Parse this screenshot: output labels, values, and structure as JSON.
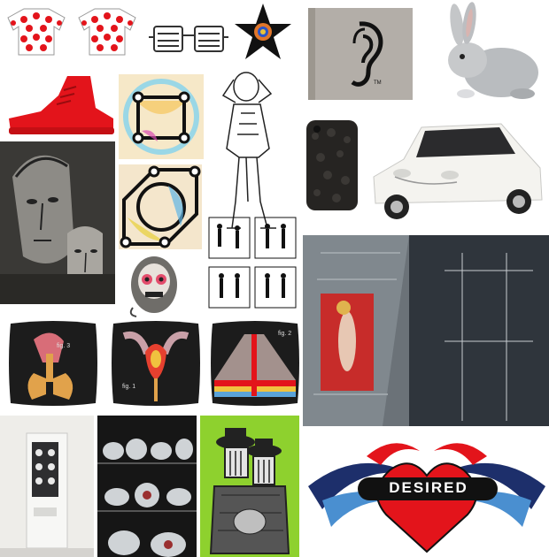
{
  "collage": {
    "background": "#ffffff",
    "tiles": [
      {
        "name": "polka-dot-jerseys",
        "icon": "cycling-jersey-icon"
      },
      {
        "name": "wire-glasses-object",
        "icon": "glasses-icon"
      },
      {
        "name": "star-emblem",
        "icon": "black-star-icon"
      },
      {
        "name": "ear-book-cover",
        "icon": "ear-icon",
        "tm": "TM"
      },
      {
        "name": "rabbit-photo",
        "icon": "rabbit-icon"
      },
      {
        "name": "red-sneaker",
        "icon": "sneaker-icon"
      },
      {
        "name": "geometric-art-top",
        "icon": "pattern-icon"
      },
      {
        "name": "man-sketch",
        "icon": "figure-drawing-icon"
      },
      {
        "name": "furry-phone-case",
        "icon": "phone-case-icon"
      },
      {
        "name": "white-car",
        "icon": "car-icon"
      },
      {
        "name": "portrait-painting",
        "icon": "faces-painting-icon"
      },
      {
        "name": "geometric-art-bottom",
        "icon": "pattern-icon"
      },
      {
        "name": "instruction-figures",
        "icon": "figures-grid-icon"
      },
      {
        "name": "sugar-skull-badge",
        "icon": "skull-icon"
      },
      {
        "name": "aerial-bed-photo",
        "icon": "photo-icon"
      },
      {
        "name": "lungs-cushion",
        "icon": "cushion-icon",
        "caption": "fig. 3"
      },
      {
        "name": "flower-cushion",
        "icon": "cushion-icon",
        "caption": "fig. 1"
      },
      {
        "name": "volcano-cushion",
        "icon": "cushion-icon",
        "caption": "fig. 2"
      },
      {
        "name": "vending-machine",
        "icon": "vending-icon"
      },
      {
        "name": "plates-shelves",
        "icon": "shelves-icon"
      },
      {
        "name": "green-illustration",
        "icon": "illustration-icon"
      },
      {
        "name": "desired-logo",
        "icon": "heart-logo-icon",
        "text": "DESIRED"
      }
    ]
  },
  "colors": {
    "red": "#e3141b",
    "green": "#8ed12e",
    "dark": "#1c1c1c",
    "gray_book": "#b3aea8",
    "navy": "#1d2f6b",
    "sky": "#4a8fd0"
  }
}
